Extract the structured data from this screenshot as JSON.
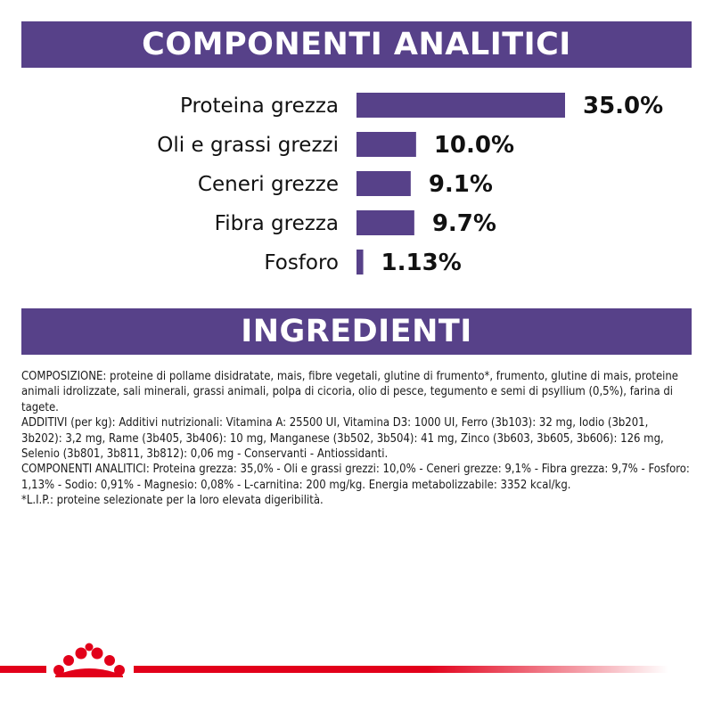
{
  "headers": {
    "analytical": "COMPONENTI ANALITICI",
    "ingredients": "INGREDIENTI"
  },
  "colors": {
    "brand_purple": "#574189",
    "brand_red": "#e2001a"
  },
  "chart_data": {
    "type": "bar",
    "orientation": "horizontal",
    "categories": [
      "Proteina grezza",
      "Oli e grassi grezzi",
      "Ceneri grezze",
      "Fibra grezza",
      "Fosforo"
    ],
    "values": [
      35.0,
      10.0,
      9.1,
      9.7,
      1.13
    ],
    "value_labels": [
      "35.0%",
      "10.0%",
      "9.1%",
      "9.7%",
      "1.13%"
    ],
    "unit": "%",
    "grid": false,
    "legend": "none",
    "xlabel": "",
    "ylabel": ""
  },
  "ingredients_text": [
    "COMPOSIZIONE: proteine di pollame disidratate, mais, fibre vegetali, glutine di frumento*, frumento, glutine di mais, proteine animali idrolizzate, sali minerali, grassi animali, polpa di cicoria, olio di pesce, tegumento e semi di psyllium (0,5%), farina di tagete.",
    "ADDITIVI (per kg): Additivi nutrizionali: Vitamina A: 25500 UI, Vitamina D3: 1000 UI, Ferro (3b103): 32 mg, Iodio (3b201, 3b202): 3,2 mg, Rame (3b405, 3b406): 10 mg, Manganese (3b502, 3b504): 41 mg, Zinco (3b603, 3b605, 3b606): 126 mg, Selenio (3b801, 3b811, 3b812): 0,06 mg - Conservanti - Antiossidanti.",
    "COMPONENTI ANALITICI: Proteina grezza: 35,0% - Oli e grassi grezzi: 10,0% - Ceneri grezze: 9,1% - Fibra grezza: 9,7% - Fosforo: 1,13% - Sodio: 0,91% - Magnesio: 0,08% - L-carnitina: 200 mg/kg. Energia metabolizzabile: 3352 kcal/kg.",
    "*L.I.P.: proteine selezionate per la loro elevata digeribilità."
  ],
  "footer": {
    "logo_icon": "crown-icon"
  }
}
